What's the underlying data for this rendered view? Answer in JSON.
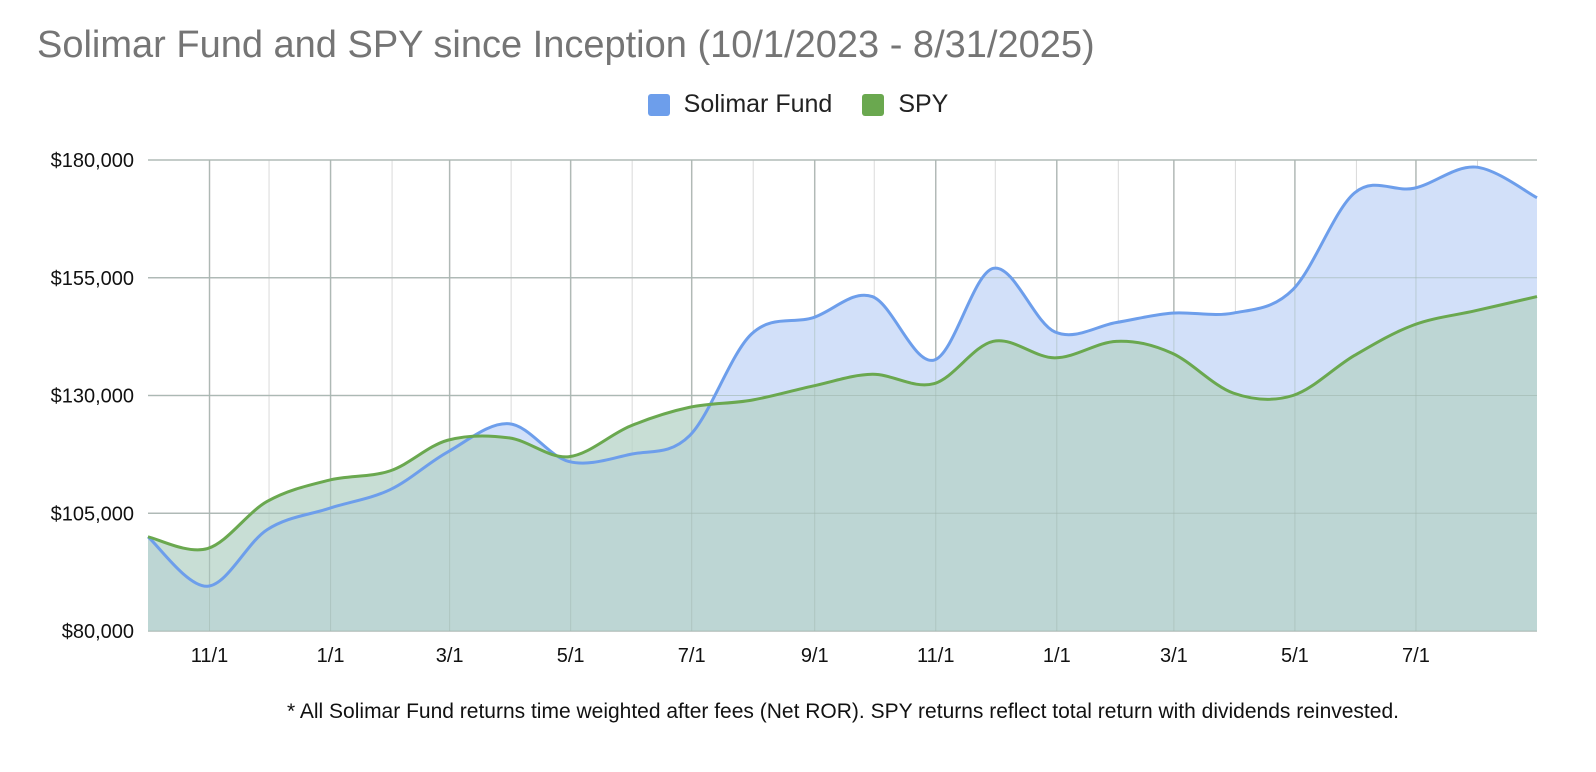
{
  "chart_data": {
    "type": "area",
    "title": "Solimar Fund and SPY since Inception (10/1/2023 - 8/31/2025)",
    "xlabel": "",
    "ylabel": "",
    "ylim": [
      80000,
      180000
    ],
    "y_ticks": [
      80000,
      105000,
      130000,
      155000,
      180000
    ],
    "y_tick_labels": [
      "$80,000",
      "$105,000",
      "$130,000",
      "$155,000",
      "$180,000"
    ],
    "x_tick_labels": [
      "11/1",
      "1/1",
      "3/1",
      "5/1",
      "7/1",
      "9/1",
      "11/1",
      "1/1",
      "3/1",
      "5/1",
      "7/1"
    ],
    "x_tick_dates": [
      "2023-11-01",
      "2024-01-01",
      "2024-03-01",
      "2024-05-01",
      "2024-07-01",
      "2024-09-01",
      "2024-11-01",
      "2025-01-01",
      "2025-03-01",
      "2025-05-01",
      "2025-07-01"
    ],
    "x_range": [
      "2023-10-01",
      "2025-08-31"
    ],
    "grid": true,
    "legend_position": "top",
    "x": [
      "2023-10-01",
      "2023-10-31",
      "2023-11-30",
      "2023-12-31",
      "2024-01-31",
      "2024-02-29",
      "2024-03-31",
      "2024-04-30",
      "2024-05-31",
      "2024-06-30",
      "2024-07-31",
      "2024-08-31",
      "2024-09-30",
      "2024-10-31",
      "2024-11-30",
      "2024-12-31",
      "2025-01-31",
      "2025-02-28",
      "2025-03-31",
      "2025-04-30",
      "2025-05-31",
      "2025-06-30",
      "2025-07-31",
      "2025-08-31"
    ],
    "series": [
      {
        "name": "Solimar Fund",
        "color": "#6d9eeb",
        "fill": "#d2e0f9",
        "values": [
          100000,
          89500,
          101500,
          106000,
          110000,
          118000,
          124000,
          116000,
          117500,
          121500,
          143000,
          146500,
          151000,
          137500,
          157000,
          143500,
          145500,
          147500,
          147500,
          152500,
          173000,
          174000,
          178500,
          172000
        ]
      },
      {
        "name": "SPY",
        "color": "#6aa84f",
        "fill": "#b5d3c7",
        "values": [
          100000,
          97500,
          107500,
          112000,
          114000,
          120500,
          121000,
          117000,
          123500,
          127500,
          129000,
          132000,
          134500,
          132500,
          141500,
          138000,
          141500,
          139000,
          130500,
          130000,
          138500,
          145000,
          148000,
          151000
        ]
      }
    ],
    "footnote": "* All Solimar Fund returns time weighted after fees (Net ROR). SPY returns reflect total return with dividends reinvested."
  }
}
